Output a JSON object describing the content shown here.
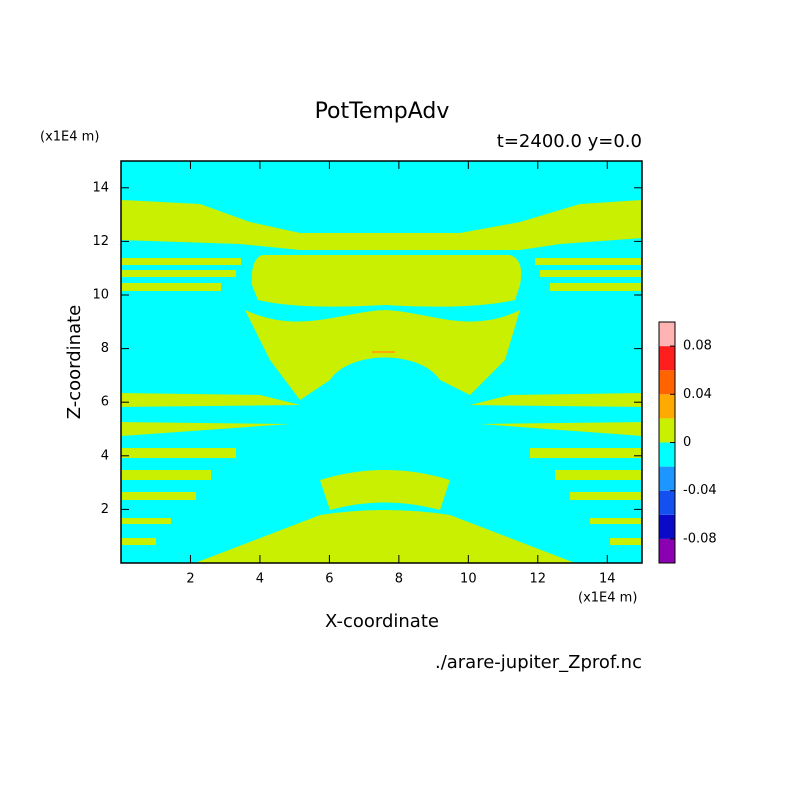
{
  "chart_data": {
    "type": "contour",
    "title": "PotTempAdv",
    "subtitle": "t=2400.0 y=0.0",
    "x_label": "X-coordinate",
    "y_label": "Z-coordinate",
    "x_unit": "(x1E4 m)",
    "y_unit": "(x1E4 m)",
    "footer": "./arare-jupiter_Zprof.nc",
    "xlim": [
      0,
      15
    ],
    "ylim": [
      0,
      15
    ],
    "xticks": [
      2,
      4,
      6,
      8,
      10,
      12,
      14
    ],
    "yticks": [
      2,
      4,
      6,
      8,
      10,
      12,
      14
    ],
    "colorbar": {
      "levels": [
        -0.1,
        -0.08,
        -0.06,
        -0.04,
        -0.02,
        0,
        0.02,
        0.04,
        0.06,
        0.08,
        0.1
      ],
      "colors": [
        "#8b00b0",
        "#0a0ac8",
        "#1450f0",
        "#1e96ff",
        "#00ffff",
        "#c8f000",
        "#ffaa00",
        "#ff6400",
        "#ff1e1e",
        "#ffb4b4"
      ],
      "ticks": [
        -0.08,
        -0.04,
        0,
        0.04,
        0.08
      ]
    }
  }
}
